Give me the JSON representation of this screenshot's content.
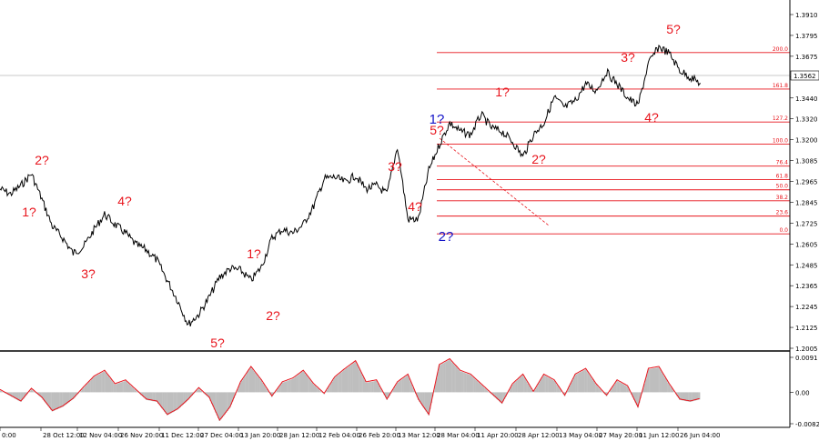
{
  "chart_data": [
    {
      "type": "line",
      "xlabel": "",
      "ylabel": "",
      "ylim": [
        1.2005,
        1.3975
      ],
      "yticks": [
        "1.3910",
        "1.3795",
        "1.3675",
        "1.3562",
        "1.3440",
        "1.3320",
        "1.3200",
        "1.3085",
        "1.2965",
        "1.2845",
        "1.2725",
        "1.2605",
        "1.2485",
        "1.2365",
        "1.2245",
        "1.2125",
        "1.2005"
      ],
      "current_price": "1.3562",
      "x_tick_labels": [
        "0:00",
        "28 Oct 12:00",
        "12 Nov 04:00",
        "26 Nov 20:00",
        "11 Dec 12:00",
        "27 Dec 04:00",
        "13 Jan 20:00",
        "28 Jan 12:00",
        "12 Feb 04:00",
        "26 Feb 20:00",
        "13 Mar 12:00",
        "28 Mar 04:00",
        "11 Apr 20:00",
        "28 Apr 12:00",
        "13 May 04:00",
        "27 May 20:00",
        "11 Jun 12:00",
        "26 Jun 04:00"
      ],
      "series": [
        {
          "values": [
            1.294,
            1.291,
            1.296,
            1.303,
            1.288,
            1.272,
            1.265,
            1.256,
            1.26,
            1.27,
            1.279,
            1.273,
            1.268,
            1.261,
            1.258,
            1.252,
            1.24,
            1.228,
            1.214,
            1.22,
            1.23,
            1.242,
            1.247,
            1.246,
            1.24,
            1.248,
            1.265,
            1.27,
            1.268,
            1.273,
            1.284,
            1.3,
            1.301,
            1.298,
            1.302,
            1.294,
            1.296,
            1.291,
            1.319,
            1.276,
            1.276,
            1.305,
            1.32,
            1.333,
            1.328,
            1.326,
            1.338,
            1.33,
            1.328,
            1.322,
            1.313,
            1.326,
            1.333,
            1.348,
            1.342,
            1.346,
            1.356,
            1.352,
            1.363,
            1.356,
            1.348,
            1.343,
            1.368,
            1.378,
            1.374,
            1.364,
            1.36,
            1.3562
          ]
        }
      ],
      "wave_labels": [
        {
          "text": "1?",
          "color": "#e8141c"
        },
        {
          "text": "2?",
          "color": "#e8141c"
        },
        {
          "text": "3?",
          "color": "#e8141c"
        },
        {
          "text": "4?",
          "color": "#e8141c"
        },
        {
          "text": "5?",
          "color": "#e8141c"
        },
        {
          "text": "1?",
          "color": "#e8141c"
        },
        {
          "text": "2?",
          "color": "#e8141c"
        },
        {
          "text": "3?",
          "color": "#e8141c"
        },
        {
          "text": "4?",
          "color": "#e8141c"
        },
        {
          "text": "5?",
          "color": "#e8141c"
        },
        {
          "text": "1?",
          "color": "#1414c8"
        },
        {
          "text": "2?",
          "color": "#1414c8"
        },
        {
          "text": "1?",
          "color": "#e8141c"
        },
        {
          "text": "2?",
          "color": "#e8141c"
        },
        {
          "text": "3?",
          "color": "#e8141c"
        },
        {
          "text": "4?",
          "color": "#e8141c"
        },
        {
          "text": "5?",
          "color": "#e8141c"
        }
      ],
      "fib_levels": [
        {
          "label": "200.0",
          "value": 1.3745
        },
        {
          "label": "161.8",
          "value": 1.353
        },
        {
          "label": "127.2",
          "value": 1.3335
        },
        {
          "label": "100.0",
          "value": 1.3205
        },
        {
          "label": "76.4",
          "value": 1.3075
        },
        {
          "label": "61.8",
          "value": 1.2995
        },
        {
          "label": "50.0",
          "value": 1.2935
        },
        {
          "label": "38.2",
          "value": 1.287
        },
        {
          "label": "23.6",
          "value": 1.278
        },
        {
          "label": "0.0",
          "value": 1.2675
        }
      ],
      "colors": {
        "price": "#000000",
        "fib": "#e8141c",
        "diag": "#e8141c",
        "grid": "#c8c8c8"
      }
    },
    {
      "type": "area",
      "name": "oscillator",
      "ylim": [
        -0.0082,
        0.0091
      ],
      "yticks": [
        "0.0091",
        "0.00",
        "-0.0082"
      ],
      "values": [
        0.0005,
        -0.001,
        -0.0025,
        0.0008,
        -0.0015,
        -0.005,
        -0.0038,
        -0.0018,
        0.0012,
        0.004,
        0.0055,
        0.002,
        0.003,
        0.0005,
        -0.002,
        -0.0025,
        -0.006,
        -0.0045,
        -0.002,
        0.001,
        -0.0015,
        -0.0075,
        -0.004,
        0.0025,
        0.0065,
        0.003,
        -0.0012,
        0.0025,
        0.0035,
        0.0055,
        0.002,
        -0.0005,
        0.0038,
        0.006,
        0.008,
        0.0025,
        0.003,
        -0.002,
        0.0025,
        0.0045,
        -0.002,
        -0.006,
        0.007,
        0.0085,
        0.0055,
        0.0045,
        0.002,
        -0.0005,
        -0.003,
        0.002,
        0.0045,
        0.0,
        0.0045,
        0.003,
        -0.001,
        0.0045,
        0.006,
        0.002,
        -0.001,
        0.003,
        0.0015,
        -0.004,
        0.006,
        0.0065,
        0.002,
        -0.002,
        -0.0025,
        -0.0018
      ],
      "colors": {
        "histogram": "#bebebe",
        "signal": "#e8141c"
      }
    }
  ]
}
